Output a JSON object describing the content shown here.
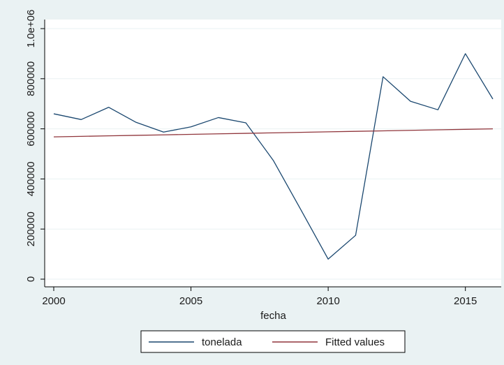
{
  "chart_data": {
    "type": "line",
    "xlabel": "fecha",
    "ylabel": "",
    "xlim": [
      2000,
      2016
    ],
    "ylim": [
      0,
      1000000
    ],
    "grid": true,
    "legend_position": "bottom",
    "x_ticks": [
      {
        "value": 2000,
        "label": "2000"
      },
      {
        "value": 2005,
        "label": "2005"
      },
      {
        "value": 2010,
        "label": "2010"
      },
      {
        "value": 2015,
        "label": "2015"
      }
    ],
    "y_ticks": [
      {
        "value": 0,
        "label": "0"
      },
      {
        "value": 200000,
        "label": "200000"
      },
      {
        "value": 400000,
        "label": "400000"
      },
      {
        "value": 600000,
        "label": "600000"
      },
      {
        "value": 800000,
        "label": "800000"
      },
      {
        "value": 1000000,
        "label": "1.0e+06"
      }
    ],
    "x": [
      2000,
      2001,
      2002,
      2003,
      2004,
      2005,
      2006,
      2007,
      2008,
      2009,
      2010,
      2011,
      2012,
      2013,
      2014,
      2015,
      2016
    ],
    "series": [
      {
        "name": "tonelada",
        "color": "#1a476f",
        "values": [
          660000,
          637000,
          686000,
          626000,
          587000,
          608000,
          645000,
          624000,
          474000,
          278000,
          80000,
          175000,
          808000,
          710000,
          676000,
          900000,
          719000
        ]
      },
      {
        "name": "Fitted values",
        "color": "#90353b",
        "values": [
          568000,
          570000,
          572000,
          574000,
          576000,
          578000,
          580000,
          582000,
          584000,
          586000,
          588000,
          590000,
          592000,
          594000,
          596000,
          598000,
          600000
        ]
      }
    ],
    "colors": {
      "outer_background": "#eaf2f3",
      "plot_background": "#ffffff",
      "grid": "#eaf2f3",
      "axis": "#000000"
    }
  }
}
